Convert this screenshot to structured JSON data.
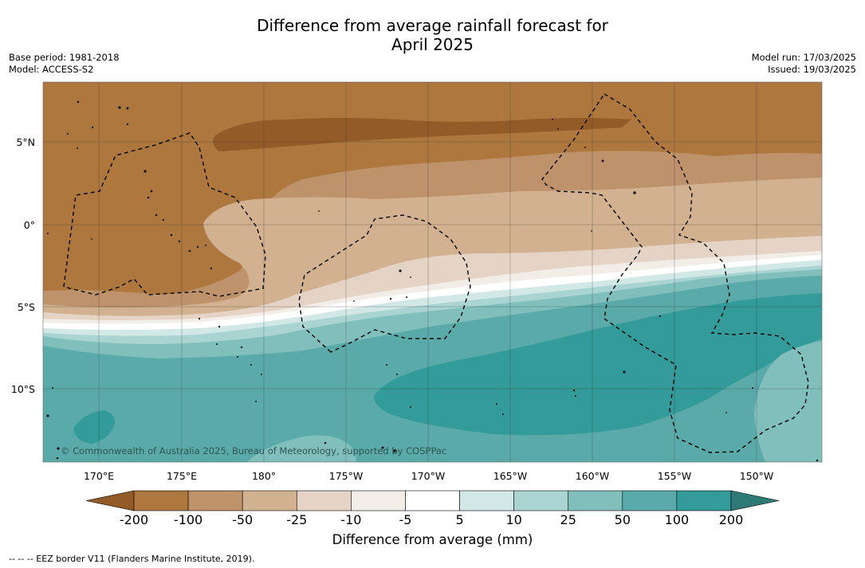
{
  "title": {
    "line1": "Difference from average rainfall forecast for",
    "line2": "April 2025"
  },
  "meta_left": {
    "base_period": "Base period: 1981-2018",
    "model": "Model: ACCESS-S2"
  },
  "meta_right": {
    "model_run": "Model run: 17/03/2025",
    "issued": "Issued: 19/03/2025"
  },
  "map": {
    "lat_labels": [
      "5°N",
      "0°",
      "5°S",
      "10°S"
    ],
    "lon_labels": [
      "170°E",
      "175°E",
      "180°",
      "175°W",
      "170°W",
      "165°W",
      "160°W",
      "155°W",
      "150°W"
    ],
    "copyright": "© Commonwealth of Australia 2025, Bureau of Meteorology, supported by COSPPac",
    "colors": {
      "lt_-200": "#935b27",
      "-200_-100": "#ad773e",
      "-100_-50": "#be926a",
      "-50_-25": "#d1b18f",
      "-25_-10": "#e5d4c5",
      "-10_-5": "#f3ede7",
      "-5_5": "#ffffff",
      "5_10": "#d2e8e6",
      "10_25": "#aad4d2",
      "25_50": "#81bfbd",
      "50_100": "#5aaaa9",
      "100_200": "#339b99",
      "gt_200": "#2e7a77"
    }
  },
  "colorbar": {
    "ticks": [
      "-200",
      "-100",
      "-50",
      "-25",
      "-10",
      "-5",
      "5",
      "10",
      "25",
      "50",
      "100",
      "200"
    ],
    "colors": [
      "#ad773e",
      "#be926a",
      "#d1b18f",
      "#e5d4c5",
      "#f3ede7",
      "#ffffff",
      "#d2e8e6",
      "#aad4d2",
      "#81bfbd",
      "#5aaaa9",
      "#339b99"
    ],
    "under_color": "#935b27",
    "over_color": "#2e7a77",
    "label": "Difference from average (mm)"
  },
  "footnote": "--  --  -- EEZ border V11 (Flanders Marine Institute, 2019)."
}
